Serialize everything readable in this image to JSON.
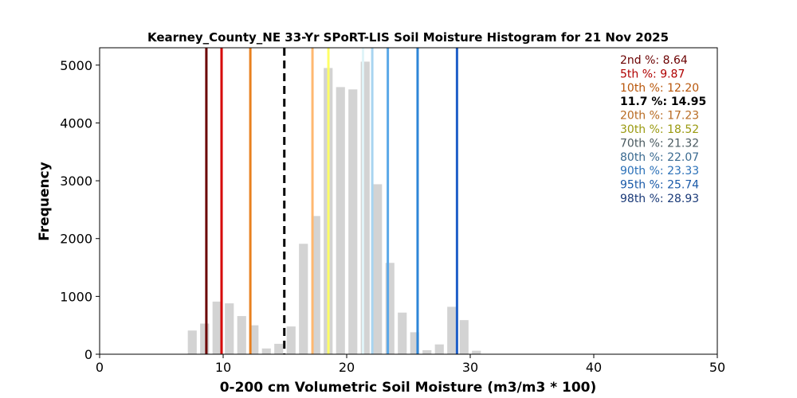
{
  "chart_data": {
    "type": "bar",
    "title": "Kearney_County_NE 33-Yr SPoRT-LIS Soil Moisture Histogram for 21 Nov 2025",
    "xlabel": "0-200 cm Volumetric Soil Moisture (m3/m3 * 100)",
    "ylabel": "Frequency",
    "xlim": [
      0,
      50
    ],
    "ylim": [
      0,
      5300
    ],
    "xticks": [
      0,
      10,
      20,
      30,
      40,
      50
    ],
    "yticks": [
      0,
      1000,
      2000,
      3000,
      4000,
      5000
    ],
    "grid": false,
    "bar_color": "#d3d3d3",
    "bin_width": 1.0,
    "bars": [
      {
        "x": 7.5,
        "value": 410
      },
      {
        "x": 8.5,
        "value": 530
      },
      {
        "x": 9.5,
        "value": 910
      },
      {
        "x": 10.5,
        "value": 880
      },
      {
        "x": 11.5,
        "value": 660
      },
      {
        "x": 12.5,
        "value": 500
      },
      {
        "x": 13.5,
        "value": 100
      },
      {
        "x": 14.5,
        "value": 180
      },
      {
        "x": 15.5,
        "value": 480
      },
      {
        "x": 16.5,
        "value": 1910
      },
      {
        "x": 17.5,
        "value": 2390
      },
      {
        "x": 18.5,
        "value": 4950
      },
      {
        "x": 19.5,
        "value": 4620
      },
      {
        "x": 20.5,
        "value": 4580
      },
      {
        "x": 21.5,
        "value": 5060
      },
      {
        "x": 22.5,
        "value": 2940
      },
      {
        "x": 23.5,
        "value": 1580
      },
      {
        "x": 24.5,
        "value": 720
      },
      {
        "x": 25.5,
        "value": 380
      },
      {
        "x": 26.5,
        "value": 70
      },
      {
        "x": 27.5,
        "value": 170
      },
      {
        "x": 28.5,
        "value": 820
      },
      {
        "x": 29.5,
        "value": 590
      },
      {
        "x": 30.5,
        "value": 60
      }
    ],
    "percentile_lines": [
      {
        "label": "2nd %",
        "value": 8.64,
        "value_text": "8.64",
        "color": "#6b0000",
        "text_color": "#6b0000",
        "dashed": false
      },
      {
        "label": "5th %",
        "value": 9.87,
        "value_text": "9.87",
        "color": "#d60000",
        "text_color": "#b00000",
        "dashed": false
      },
      {
        "label": "10th %",
        "value": 12.2,
        "value_text": "12.20",
        "color": "#e8801f",
        "text_color": "#b8560a",
        "dashed": false
      },
      {
        "label": "11.7 %",
        "value": 14.95,
        "value_text": "14.95",
        "color": "#000000",
        "text_color": "#000000",
        "dashed": true
      },
      {
        "label": "20th %",
        "value": 17.23,
        "value_text": "17.23",
        "color": "#ffb870",
        "text_color": "#b86b22",
        "dashed": false
      },
      {
        "label": "30th %",
        "value": 18.52,
        "value_text": "18.52",
        "color": "#ffff66",
        "text_color": "#9a9a10",
        "dashed": false
      },
      {
        "label": "70th %",
        "value": 21.32,
        "value_text": "21.32",
        "color": "#e0f4f8",
        "text_color": "#4a5a60",
        "dashed": false
      },
      {
        "label": "80th %",
        "value": 22.07,
        "value_text": "22.07",
        "color": "#a8d4f0",
        "text_color": "#3a6a90",
        "dashed": false
      },
      {
        "label": "90th %",
        "value": 23.33,
        "value_text": "23.33",
        "color": "#5aa8e8",
        "text_color": "#2a70b8",
        "dashed": false
      },
      {
        "label": "95th %",
        "value": 25.74,
        "value_text": "25.74",
        "color": "#2e86d8",
        "text_color": "#1a5aa8",
        "dashed": false
      },
      {
        "label": "98th %",
        "value": 28.93,
        "value_text": "28.93",
        "color": "#1f5fc8",
        "text_color": "#1a3a78",
        "dashed": false
      }
    ],
    "legend_placement": "top-right"
  }
}
